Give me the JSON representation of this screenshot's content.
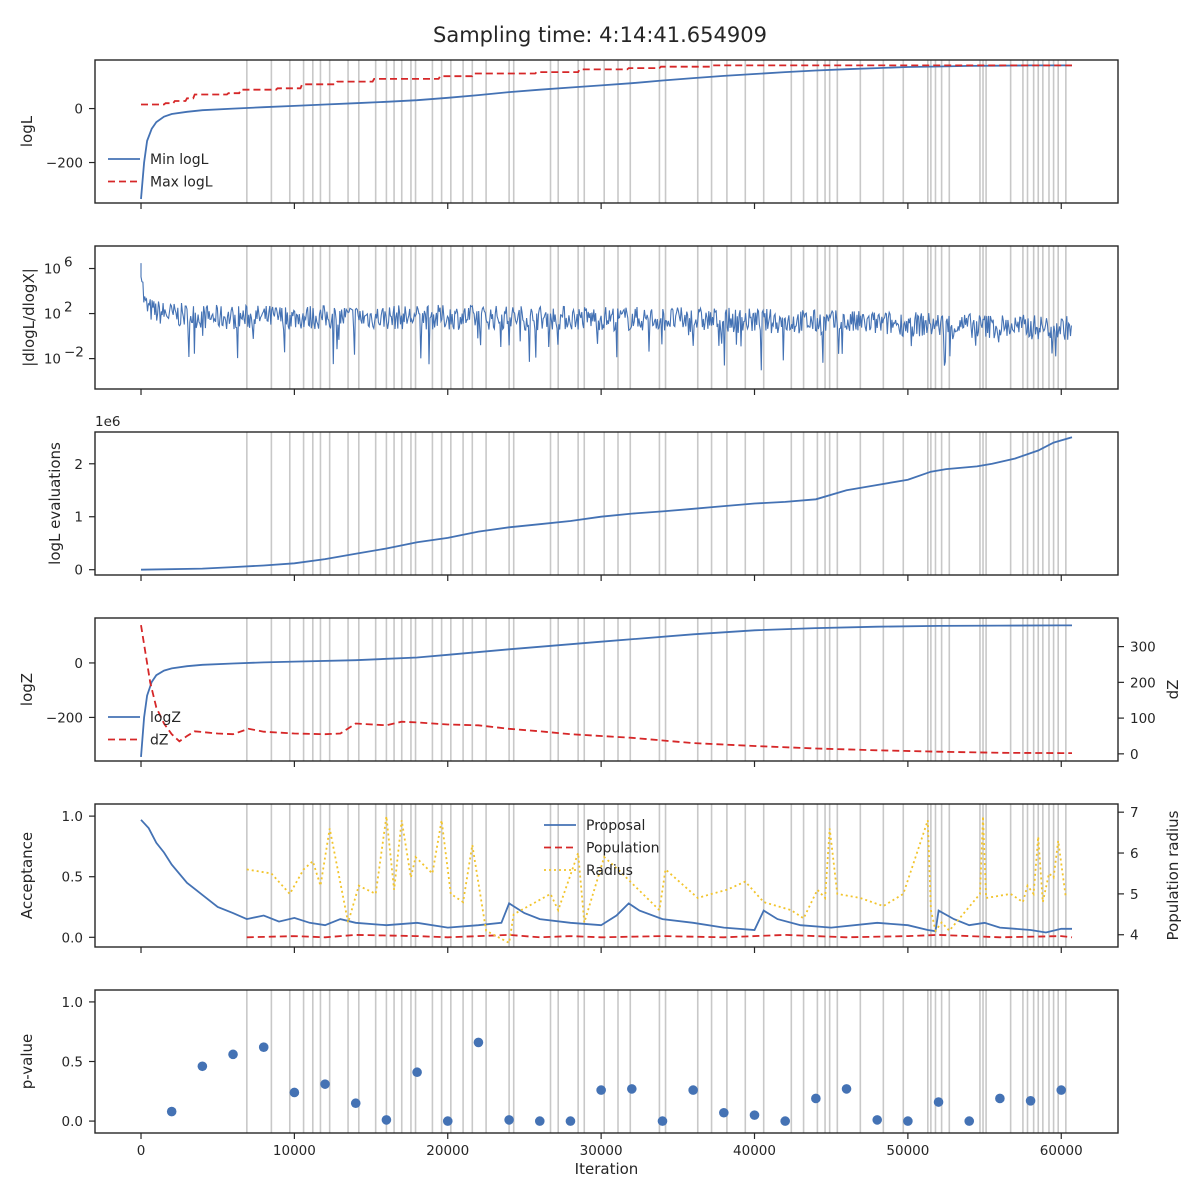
{
  "figure": {
    "title": "Sampling time: 4:14:41.654909"
  },
  "colors": {
    "blue": "#4472b4",
    "red": "#d62728",
    "yellow": "#f2c42b",
    "grid_line": "#c8c8c8",
    "axis": "#262626"
  },
  "shared_x": {
    "label": "Iteration",
    "lim": [
      -3000,
      63700
    ],
    "ticks": [
      0,
      10000,
      20000,
      30000,
      40000,
      50000,
      60000
    ],
    "tick_labels": [
      "0",
      "10000",
      "20000",
      "30000",
      "40000",
      "50000",
      "60000"
    ],
    "vlines": [
      6900,
      8500,
      9700,
      10600,
      11200,
      11700,
      12300,
      13500,
      14200,
      15300,
      16000,
      16500,
      17000,
      17600,
      17900,
      19000,
      19600,
      20200,
      21000,
      21600,
      22500,
      24000,
      24300,
      26700,
      27200,
      28500,
      28900,
      30200,
      31100,
      31900,
      33800,
      34200,
      36300,
      37200,
      38200,
      39400,
      40600,
      42400,
      43200,
      44100,
      44600,
      44900,
      45400,
      46900,
      48400,
      49700,
      51300,
      51500,
      51800,
      52200,
      52700,
      54700,
      54900,
      55100,
      56700,
      57500,
      57800,
      58200,
      58500,
      58800,
      59200,
      59500,
      59800,
      60300
    ]
  },
  "chart_data": [
    {
      "type": "line",
      "ylabel": "logL",
      "ylim": [
        -350,
        180
      ],
      "y_ticks": [
        -200,
        0
      ],
      "y_tick_labels": [
        "−200",
        "0"
      ],
      "legend": "lower-left",
      "series": [
        {
          "name": "Min logL",
          "style": "solid",
          "color": "blue",
          "x": [
            0,
            200,
            400,
            700,
            1000,
            1500,
            2000,
            3000,
            4000,
            6000,
            8000,
            10000,
            12000,
            14000,
            16000,
            18000,
            20000,
            22000,
            24000,
            26000,
            28000,
            30000,
            32000,
            34000,
            36000,
            38000,
            40000,
            42000,
            44000,
            46000,
            48000,
            50000,
            52000,
            54000,
            56000,
            58000,
            60000,
            60700
          ],
          "y": [
            -335,
            -200,
            -120,
            -75,
            -50,
            -30,
            -20,
            -12,
            -6,
            0,
            5,
            10,
            15,
            20,
            25,
            31,
            40,
            50,
            61,
            70,
            78,
            86,
            94,
            104,
            113,
            121,
            128,
            135,
            141,
            146,
            150,
            154,
            156,
            158,
            159,
            160,
            160,
            160
          ]
        },
        {
          "name": "Max logL",
          "style": "dashed",
          "color": "red",
          "x": [
            0,
            1500,
            1600,
            2100,
            2200,
            2900,
            3000,
            3400,
            3500,
            5600,
            5700,
            6400,
            6500,
            8800,
            8900,
            10400,
            10500,
            12700,
            12800,
            15100,
            15200,
            19400,
            19500,
            21600,
            21700,
            25700,
            25800,
            28500,
            28600,
            31700,
            31800,
            33800,
            33900,
            37200,
            37300,
            60700
          ],
          "y": [
            15,
            15,
            20,
            20,
            28,
            28,
            38,
            38,
            52,
            52,
            57,
            57,
            70,
            70,
            75,
            75,
            90,
            90,
            100,
            100,
            110,
            110,
            120,
            120,
            130,
            130,
            135,
            135,
            145,
            145,
            150,
            150,
            155,
            155,
            160,
            160
          ]
        }
      ]
    },
    {
      "type": "line",
      "ylabel": "|dlogL/dlogX|",
      "y_scale": "log",
      "ylim": [
        2e-05,
        100000000
      ],
      "y_ticks": [
        0.01,
        100,
        1000000
      ],
      "y_tick_labels": [
        "10",
        "10",
        "10"
      ],
      "y_tick_exponents": [
        "−2",
        "2",
        "6"
      ],
      "series": [
        {
          "name": "",
          "style": "noise",
          "color": "blue",
          "x": [
            0,
            100,
            200,
            400,
            800,
            2000,
            5000,
            10000,
            20000,
            30000,
            40000,
            50000,
            55000,
            60000,
            60700
          ],
          "y": [
            3000000,
            50000,
            1500,
            400,
            200,
            100,
            60,
            60,
            60,
            50,
            30,
            15,
            10,
            7,
            7
          ]
        }
      ]
    },
    {
      "type": "line",
      "ylabel": "logL evaluations",
      "offset_text": "1e6",
      "ylim": [
        -0.1,
        2.6
      ],
      "y_ticks": [
        0,
        1,
        2
      ],
      "y_tick_labels": [
        "0",
        "1",
        "2"
      ],
      "series": [
        {
          "name": "",
          "style": "solid",
          "color": "blue",
          "x": [
            0,
            4000,
            6000,
            8000,
            10000,
            12000,
            14000,
            16000,
            18000,
            20000,
            22000,
            24000,
            26000,
            28000,
            30000,
            32000,
            34000,
            36000,
            38000,
            40000,
            42000,
            44000,
            46000,
            48000,
            50000,
            51500,
            52500,
            54500,
            55500,
            57000,
            58500,
            59500,
            60700
          ],
          "y": [
            0.0,
            0.02,
            0.05,
            0.08,
            0.12,
            0.2,
            0.3,
            0.4,
            0.52,
            0.6,
            0.72,
            0.8,
            0.86,
            0.92,
            1.0,
            1.06,
            1.1,
            1.15,
            1.2,
            1.25,
            1.28,
            1.33,
            1.5,
            1.6,
            1.7,
            1.85,
            1.9,
            1.95,
            2.0,
            2.1,
            2.25,
            2.4,
            2.5
          ]
        }
      ]
    },
    {
      "type": "line",
      "ylabel": "logZ",
      "ylim": [
        -360,
        165
      ],
      "y_ticks": [
        -200,
        0
      ],
      "y_tick_labels": [
        "−200",
        "0"
      ],
      "secondary_ylabel": "dZ",
      "secondary_ylim": [
        -20,
        380
      ],
      "secondary_y_ticks": [
        0,
        100,
        200,
        300
      ],
      "secondary_y_tick_labels": [
        "0",
        "100",
        "200",
        "300"
      ],
      "legend": "lower-left",
      "series": [
        {
          "name": "logZ",
          "style": "solid",
          "color": "blue",
          "axis": "left",
          "x": [
            0,
            200,
            400,
            700,
            1000,
            1500,
            2000,
            3000,
            4000,
            6000,
            8000,
            10000,
            14000,
            18000,
            20000,
            24000,
            30000,
            36000,
            40000,
            44000,
            48000,
            52000,
            56000,
            60000,
            60700
          ],
          "y": [
            -345,
            -200,
            -120,
            -70,
            -45,
            -28,
            -20,
            -12,
            -7,
            -2,
            2,
            5,
            10,
            20,
            30,
            50,
            78,
            105,
            120,
            128,
            133,
            136,
            137,
            138,
            138
          ]
        },
        {
          "name": "dZ",
          "style": "dashed",
          "color": "red",
          "axis": "right",
          "x": [
            0,
            300,
            600,
            1000,
            1500,
            2000,
            2500,
            3000,
            3500,
            5000,
            6000,
            7000,
            8000,
            10000,
            12000,
            13000,
            14000,
            16000,
            17000,
            18000,
            20000,
            22000,
            24000,
            26000,
            28000,
            30000,
            32000,
            36000,
            40000,
            44000,
            48000,
            52000,
            56000,
            60000,
            60700
          ],
          "y": [
            360,
            280,
            200,
            130,
            85,
            55,
            35,
            50,
            63,
            57,
            55,
            70,
            62,
            57,
            55,
            57,
            85,
            80,
            90,
            88,
            82,
            80,
            70,
            63,
            55,
            50,
            45,
            30,
            22,
            15,
            10,
            6,
            3,
            2,
            2
          ]
        }
      ]
    },
    {
      "type": "line",
      "ylabel": "Acceptance",
      "ylim": [
        -0.08,
        1.1
      ],
      "y_ticks": [
        0.0,
        0.5,
        1.0
      ],
      "y_tick_labels": [
        "0.0",
        "0.5",
        "1.0"
      ],
      "secondary_ylabel": "Population radius",
      "secondary_ylim": [
        3.7,
        7.2
      ],
      "secondary_y_ticks": [
        4,
        5,
        6,
        7
      ],
      "secondary_y_tick_labels": [
        "4",
        "5",
        "6",
        "7"
      ],
      "legend": "top-center",
      "series": [
        {
          "name": "Proposal",
          "style": "solid",
          "color": "blue",
          "axis": "left",
          "x": [
            0,
            500,
            1000,
            1500,
            2000,
            3000,
            4000,
            5000,
            6000,
            6900,
            8000,
            9000,
            10000,
            11000,
            12000,
            13000,
            14000,
            16000,
            18000,
            20000,
            22000,
            23500,
            24000,
            25000,
            26000,
            28000,
            30000,
            31000,
            31800,
            32500,
            34000,
            36000,
            38000,
            40000,
            40600,
            41500,
            43000,
            45000,
            48000,
            50000,
            51300,
            51800,
            52000,
            53000,
            54000,
            55000,
            56000,
            58000,
            59000,
            60000,
            60700
          ],
          "y": [
            0.97,
            0.9,
            0.78,
            0.7,
            0.6,
            0.45,
            0.35,
            0.25,
            0.2,
            0.15,
            0.18,
            0.13,
            0.16,
            0.12,
            0.1,
            0.15,
            0.12,
            0.1,
            0.12,
            0.08,
            0.1,
            0.12,
            0.28,
            0.2,
            0.15,
            0.12,
            0.1,
            0.18,
            0.28,
            0.22,
            0.15,
            0.12,
            0.08,
            0.06,
            0.22,
            0.15,
            0.1,
            0.08,
            0.12,
            0.1,
            0.06,
            0.05,
            0.22,
            0.15,
            0.1,
            0.12,
            0.08,
            0.06,
            0.04,
            0.07,
            0.07
          ]
        },
        {
          "name": "Population",
          "style": "dashed",
          "color": "red",
          "axis": "left",
          "x": [
            6900,
            10000,
            12000,
            14000,
            18000,
            20000,
            24000,
            26000,
            28000,
            30000,
            34000,
            38000,
            42000,
            46000,
            50000,
            52000,
            56000,
            60000,
            60700
          ],
          "y": [
            0.0,
            0.01,
            0.0,
            0.02,
            0.01,
            0.0,
            0.02,
            0.0,
            0.01,
            0.0,
            0.01,
            0.0,
            0.02,
            0.0,
            0.01,
            0.02,
            0.0,
            0.01,
            0.0
          ]
        },
        {
          "name": "Radius",
          "style": "dotted",
          "color": "yellow",
          "axis": "right",
          "x": [
            6900,
            8500,
            9700,
            10600,
            11200,
            11700,
            12300,
            13500,
            14200,
            15300,
            16000,
            16500,
            17000,
            17600,
            17900,
            19000,
            19600,
            20200,
            21000,
            21600,
            22500,
            24000,
            24300,
            26700,
            27200,
            28500,
            28900,
            30200,
            31100,
            31900,
            33800,
            34200,
            36300,
            37200,
            38200,
            39400,
            40600,
            42400,
            43200,
            44100,
            44600,
            44900,
            45400,
            46900,
            48400,
            49700,
            51300,
            51500,
            51800,
            52200,
            52700,
            54700,
            54900,
            55100,
            56700,
            57500,
            57800,
            58200,
            58500,
            58800,
            59200,
            59500,
            59800,
            60300
          ],
          "y": [
            5.6,
            5.5,
            5.0,
            5.6,
            5.8,
            5.2,
            6.6,
            4.3,
            5.2,
            5.0,
            6.9,
            5.1,
            6.8,
            5.4,
            5.9,
            5.5,
            6.8,
            5.0,
            4.8,
            6.2,
            4.1,
            3.8,
            4.5,
            5.0,
            4.6,
            6.0,
            4.3,
            5.9,
            5.6,
            5.3,
            4.6,
            5.6,
            4.9,
            5.0,
            5.1,
            5.3,
            4.8,
            4.6,
            4.4,
            5.1,
            4.9,
            6.6,
            5.0,
            4.9,
            4.7,
            5.0,
            6.8,
            4.6,
            4.1,
            4.3,
            4.1,
            5.0,
            6.9,
            4.9,
            5.0,
            4.8,
            5.2,
            5.0,
            6.4,
            4.8,
            5.5,
            5.4,
            6.3,
            4.9
          ]
        }
      ]
    },
    {
      "type": "scatter",
      "ylabel": "p-value",
      "xlabel": "Iteration",
      "ylim": [
        -0.1,
        1.1
      ],
      "y_ticks": [
        0.0,
        0.5,
        1.0
      ],
      "y_tick_labels": [
        "0.0",
        "0.5",
        "1.0"
      ],
      "series": [
        {
          "name": "",
          "style": "points",
          "color": "blue",
          "x": [
            2000,
            4000,
            6000,
            8000,
            10000,
            12000,
            14000,
            16000,
            18000,
            20000,
            22000,
            24000,
            26000,
            28000,
            30000,
            32000,
            34000,
            36000,
            38000,
            40000,
            42000,
            44000,
            46000,
            48000,
            50000,
            52000,
            54000,
            56000,
            58000,
            60000
          ],
          "y": [
            0.08,
            0.46,
            0.56,
            0.62,
            0.24,
            0.31,
            0.15,
            0.01,
            0.41,
            0.0,
            0.66,
            0.01,
            0.0,
            0.0,
            0.26,
            0.27,
            0.0,
            0.26,
            0.07,
            0.05,
            0.0,
            0.19,
            0.27,
            0.01,
            0.0,
            0.16,
            0.0,
            0.19,
            0.17,
            0.26
          ]
        }
      ]
    }
  ]
}
